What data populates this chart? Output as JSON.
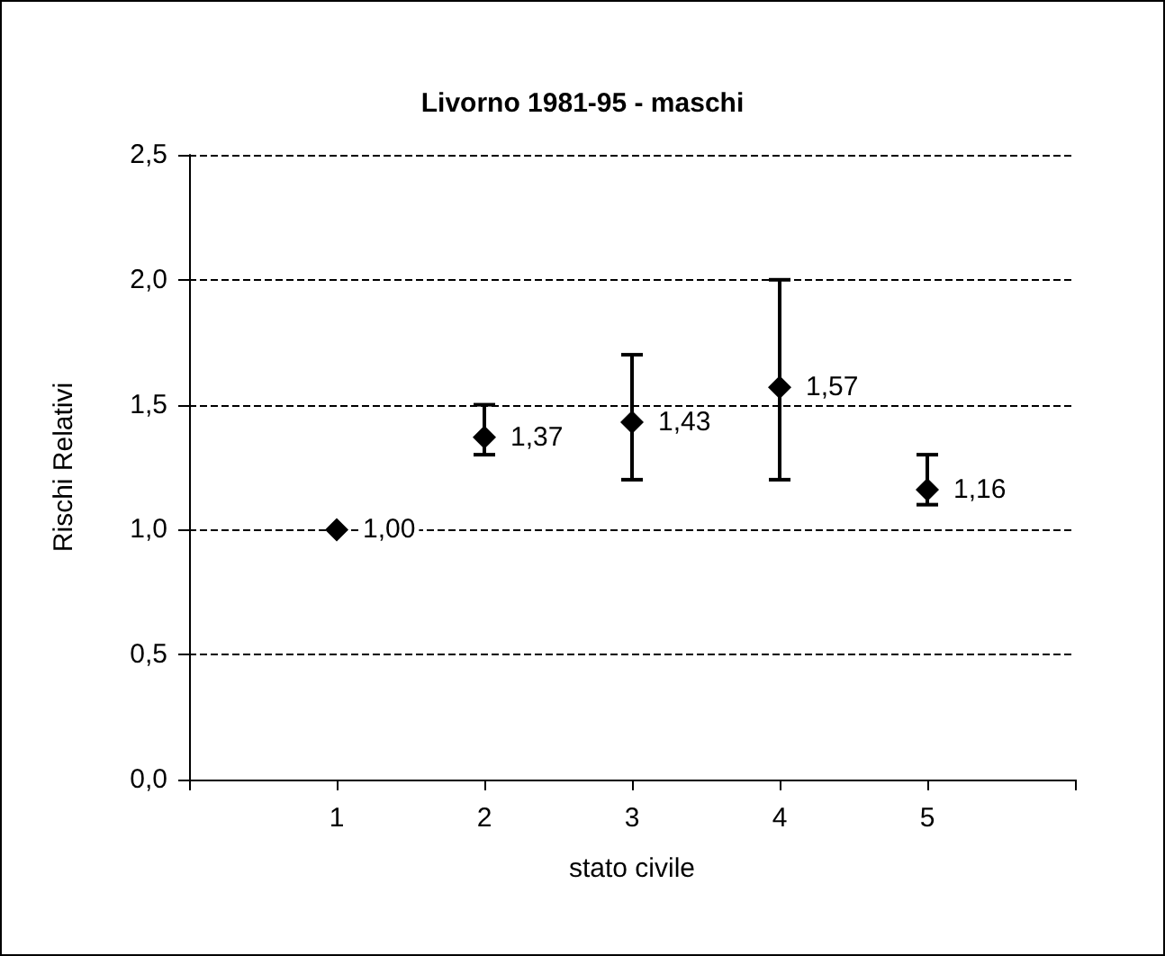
{
  "chart_data": {
    "type": "scatter",
    "title": "Livorno 1981-95 - maschi",
    "xlabel": "stato civile",
    "ylabel": "Rischi Relativi",
    "x": [
      1,
      2,
      3,
      4,
      5
    ],
    "values": [
      1.0,
      1.37,
      1.43,
      1.57,
      1.16
    ],
    "errors": [
      null,
      [
        1.3,
        1.5
      ],
      [
        1.2,
        1.7
      ],
      [
        1.2,
        2.0
      ],
      [
        1.1,
        1.3
      ]
    ],
    "value_labels": [
      "1,00",
      "1,37",
      "1,43",
      "1,57",
      "1,16"
    ],
    "color": "#000000",
    "marker": "diamond",
    "xlim": [
      0,
      6
    ],
    "xticks": [
      {
        "value": 0,
        "label": null
      },
      1,
      2,
      3,
      4,
      5,
      {
        "value": 6,
        "label": null
      }
    ],
    "ylim": [
      0,
      2.5
    ],
    "yticks": [
      {
        "value": 0,
        "label": "0,0"
      },
      {
        "value": 0.5,
        "label": "0,5"
      },
      {
        "value": 1,
        "label": "1,0"
      },
      {
        "value": 1.5,
        "label": "1,5"
      },
      {
        "value": 2,
        "label": "2,0"
      },
      {
        "value": 2.5,
        "label": "2,5"
      }
    ],
    "grid": "y"
  }
}
